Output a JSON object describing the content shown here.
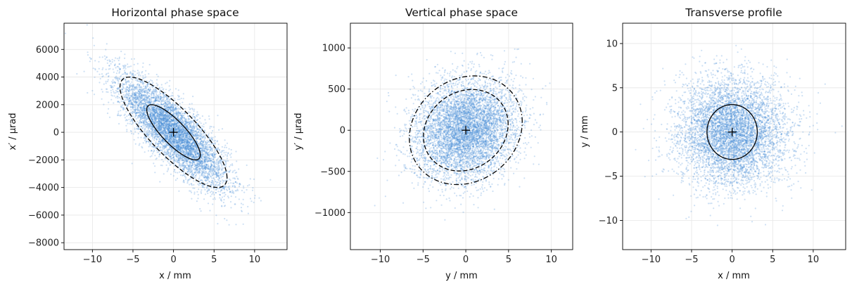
{
  "figure": {
    "point_color": "#4a90d9",
    "ellipse_color": "#000000",
    "grid": true
  },
  "chart_data": [
    {
      "type": "scatter",
      "title": "Horizontal phase space",
      "xlabel": "x / mm",
      "ylabel": "x′ / μrad",
      "xlim": [
        -13.5,
        14.0
      ],
      "ylim": [
        -8500,
        7900
      ],
      "xticks": [
        -10,
        -5,
        0,
        5,
        10
      ],
      "xtick_labels": [
        "−10",
        "−5",
        "0",
        "5",
        "10"
      ],
      "yticks": [
        -8000,
        -6000,
        -4000,
        -2000,
        0,
        2000,
        4000,
        6000
      ],
      "ytick_labels": [
        "−8000",
        "−6000",
        "−4000",
        "−2000",
        "0",
        "2000",
        "4000",
        "6000"
      ],
      "distribution": {
        "n": 6000,
        "mean": [
          0,
          0
        ],
        "sigma": [
          3.3,
          2000
        ],
        "correlation": -0.82
      },
      "centroid": [
        0,
        0
      ],
      "ellipses": [
        {
          "style": "solid",
          "center": [
            0,
            0
          ],
          "sigma": [
            3.3,
            2000
          ],
          "correlation": -0.82,
          "scale": 1.0
        },
        {
          "style": "dashed",
          "center": [
            0,
            0
          ],
          "sigma": [
            3.3,
            2000
          ],
          "correlation": -0.82,
          "scale": 2.0
        }
      ]
    },
    {
      "type": "scatter",
      "title": "Vertical phase space",
      "xlabel": "y / mm",
      "ylabel": "y′ / μrad",
      "xlim": [
        -13.5,
        12.5
      ],
      "ylim": [
        -1450,
        1300
      ],
      "xticks": [
        -10,
        -5,
        0,
        5,
        10
      ],
      "xtick_labels": [
        "−10",
        "−5",
        "0",
        "5",
        "10"
      ],
      "yticks": [
        -1000,
        -500,
        0,
        500,
        1000
      ],
      "ytick_labels": [
        "−1000",
        "−500",
        "0",
        "500",
        "1000"
      ],
      "distribution": {
        "n": 6000,
        "mean": [
          0,
          0
        ],
        "sigma": [
          3.0,
          300
        ],
        "correlation": 0.15
      },
      "centroid": [
        0,
        0
      ],
      "ellipses": [
        {
          "style": "dashed",
          "center": [
            0,
            0
          ],
          "sigma": [
            3.0,
            300
          ],
          "correlation": 0.15,
          "scale": 1.65
        },
        {
          "style": "dashdot",
          "center": [
            0,
            0
          ],
          "sigma": [
            3.3,
            330
          ],
          "correlation": 0.15,
          "scale": 2.0
        }
      ]
    },
    {
      "type": "scatter",
      "title": "Transverse profile",
      "xlabel": "x / mm",
      "ylabel": "y / mm",
      "xlim": [
        -13.5,
        14.0
      ],
      "ylim": [
        -13.3,
        12.3
      ],
      "xticks": [
        -10,
        -5,
        0,
        5,
        10
      ],
      "xtick_labels": [
        "−10",
        "−5",
        "0",
        "5",
        "10"
      ],
      "yticks": [
        -10,
        -5,
        0,
        5,
        10
      ],
      "ytick_labels": [
        "−10",
        "−5",
        "0",
        "5",
        "10"
      ],
      "distribution": {
        "n": 6000,
        "mean": [
          0,
          0
        ],
        "sigma": [
          3.3,
          3.0
        ],
        "correlation": 0.0
      },
      "centroid": [
        0,
        0
      ],
      "ellipses": [
        {
          "style": "solid",
          "center": [
            0,
            0
          ],
          "sigma": [
            3.1,
            3.1
          ],
          "correlation": 0.0,
          "scale": 1.0
        }
      ]
    }
  ]
}
